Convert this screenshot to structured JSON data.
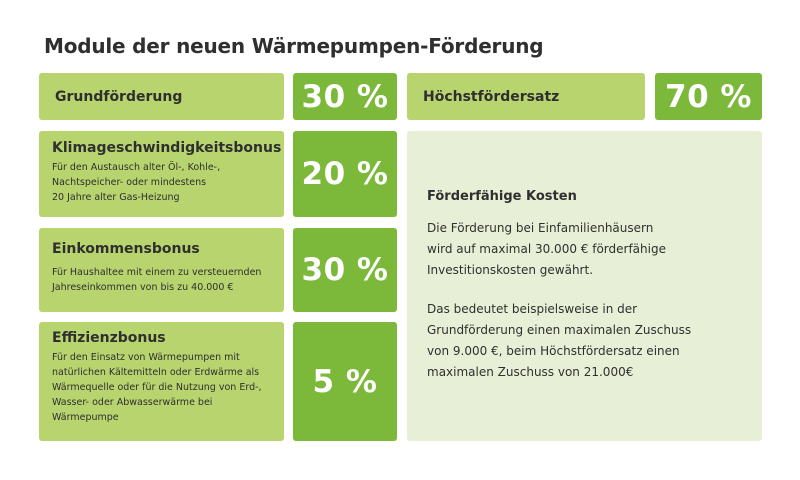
{
  "title": "Module der neuen Wärmepumpen-Förderung",
  "grund": {
    "label": "Grundförderung",
    "percent": "30 %"
  },
  "hoechst": {
    "label": "Höchstfördersatz",
    "percent": "70 %"
  },
  "bonuses": [
    {
      "title": "Klimageschwindigkeitsbonus",
      "desc_lines": [
        "Für den Austausch alter Öl-, Kohle-,",
        "Nachtspeicher- oder mindestens",
        "20 Jahre alter Gas-Heizung"
      ],
      "percent": "20 %"
    },
    {
      "title": "Einkommensbonus",
      "desc_lines": [
        "Für Haushaltee mit einem zu versteuernden",
        "Jahreseinkommen von bis zu 40.000 €"
      ],
      "percent": "30 %"
    },
    {
      "title": "Effizienzbonus",
      "desc_lines": [
        "Für den Einsatz von Wärmepumpen mit",
        "natürlichen Kältemitteln oder Erdwärme als",
        "Wärmequelle oder für die Nutzung von Erd-,",
        "Wasser- oder Abwasserwärme bei",
        "Wärmepumpe"
      ],
      "percent": "5 %"
    }
  ],
  "info": {
    "heading": "Förderfähige Kosten",
    "para1_lines": [
      "Die Förderung bei Einfamilienhäusern",
      "wird auf maximal 30.000 € förderfähige",
      "Investitionskosten gewährt."
    ],
    "para2_lines": [
      "Das bedeutet beispielsweise in der",
      "Grundförderung einen maximalen Zuschuss",
      "von 9.000 €, beim Höchstfördersatz einen",
      "maximalen Zuschuss von 21.000€"
    ]
  },
  "colors": {
    "label_green": "#b8d46e",
    "percent_green": "#7cb83a",
    "info_bg": "#e7f0d6",
    "text": "#2f2f2f"
  }
}
